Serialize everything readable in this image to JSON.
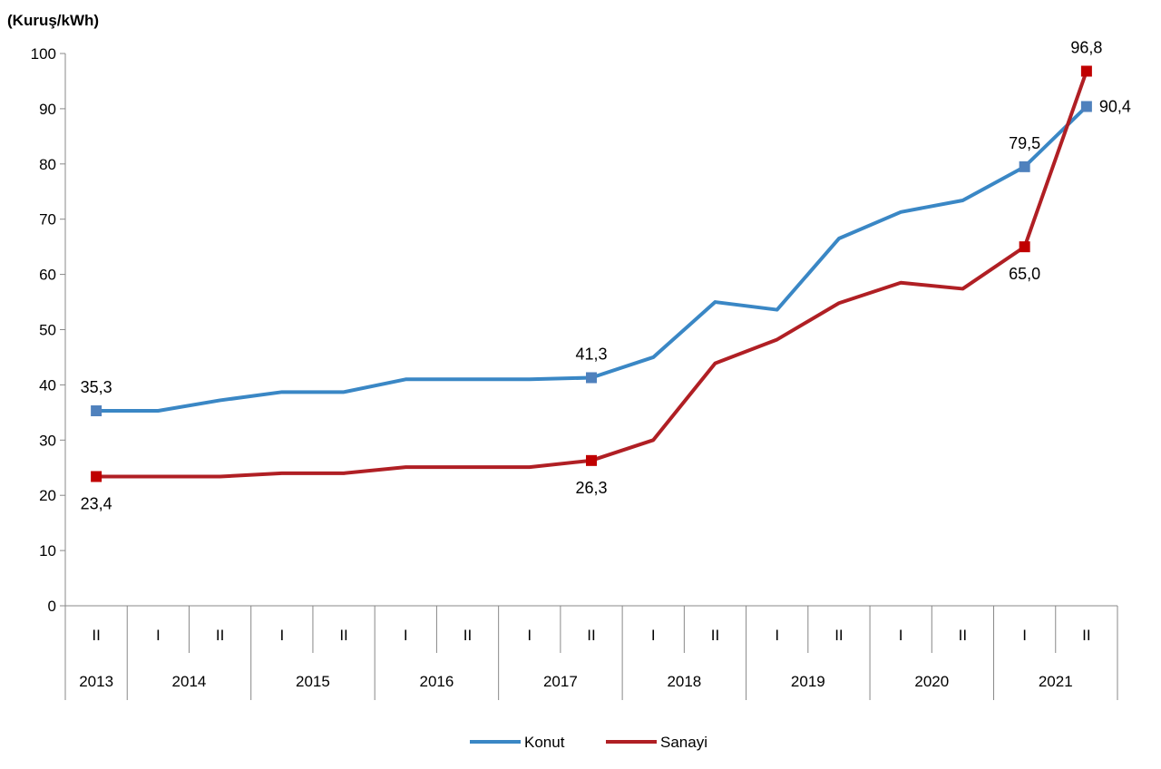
{
  "chart_data": {
    "type": "line",
    "title": "",
    "ylabel": "(Kuruş/kWh)",
    "xlabel": "",
    "ylim": [
      0,
      100
    ],
    "yticks": [
      0,
      10,
      20,
      30,
      40,
      50,
      60,
      70,
      80,
      90,
      100
    ],
    "ytick_labels": [
      "0",
      "10",
      "20",
      "30",
      "40",
      "50",
      "60",
      "70",
      "80",
      "90",
      "100"
    ],
    "categories": [
      "II",
      "I",
      "II",
      "I",
      "II",
      "I",
      "II",
      "I",
      "II",
      "I",
      "II",
      "I",
      "II",
      "I",
      "II",
      "I",
      "II"
    ],
    "years": [
      {
        "label": "2013",
        "span": 1
      },
      {
        "label": "2014",
        "span": 2
      },
      {
        "label": "2015",
        "span": 2
      },
      {
        "label": "2016",
        "span": 2
      },
      {
        "label": "2017",
        "span": 2
      },
      {
        "label": "2018",
        "span": 2
      },
      {
        "label": "2019",
        "span": 2
      },
      {
        "label": "2020",
        "span": 2
      },
      {
        "label": "2021",
        "span": 2
      }
    ],
    "series": [
      {
        "name": "Konut",
        "color": "#3a87c5",
        "marker_color": "#4f81bd",
        "values": [
          35.3,
          35.3,
          37.2,
          38.7,
          38.7,
          41.0,
          41.0,
          41.0,
          41.3,
          45.0,
          55.0,
          53.6,
          66.5,
          71.3,
          73.4,
          79.5,
          90.4
        ],
        "labels": [
          {
            "index": 0,
            "text": "35,3",
            "pos": "above"
          },
          {
            "index": 8,
            "text": "41,3",
            "pos": "above"
          },
          {
            "index": 15,
            "text": "79,5",
            "pos": "above"
          },
          {
            "index": 16,
            "text": "90,4",
            "pos": "right"
          }
        ]
      },
      {
        "name": "Sanayi",
        "color": "#b01f24",
        "marker_color": "#c00000",
        "values": [
          23.4,
          23.4,
          23.4,
          24.0,
          24.0,
          25.1,
          25.1,
          25.1,
          26.3,
          30.0,
          43.9,
          48.2,
          54.8,
          58.5,
          57.4,
          65.0,
          96.8
        ],
        "labels": [
          {
            "index": 0,
            "text": "23,4",
            "pos": "below"
          },
          {
            "index": 8,
            "text": "26,3",
            "pos": "below"
          },
          {
            "index": 15,
            "text": "65,0",
            "pos": "below"
          },
          {
            "index": 16,
            "text": "96,8",
            "pos": "above"
          }
        ]
      }
    ],
    "legend": "bottom-center",
    "grid": false
  }
}
